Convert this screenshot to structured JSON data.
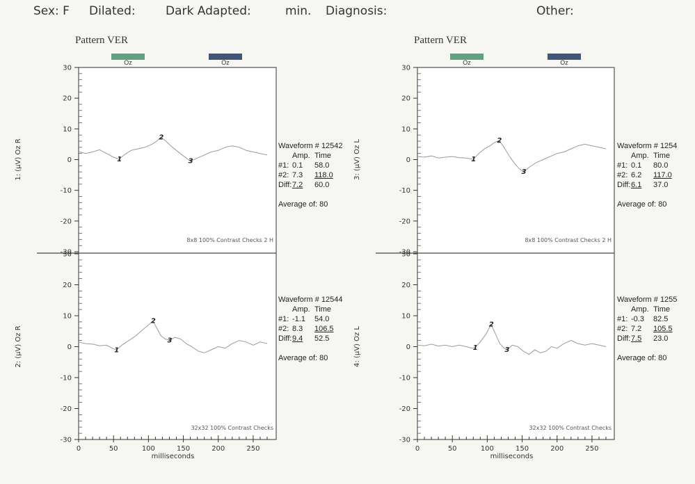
{
  "header": {
    "sex": "Sex: F",
    "dilated": "Dilated:",
    "dark_adapted": "Dark Adapted:",
    "min": "min.",
    "diagnosis": "Diagnosis:",
    "other": "Other:"
  },
  "panels": [
    {
      "title": "Pattern VER",
      "legend": [
        {
          "label": "Oz",
          "color": "#5fa37e"
        },
        {
          "label": "Oz",
          "color": "#3f5679"
        }
      ],
      "xlabel": "milliseconds",
      "traces": [
        {
          "channel": "1:  (μV)  Oz R",
          "caption": "8x8  100% Contrast  Checks 2 H",
          "info": {
            "waveform": "Waveform # 12542",
            "amp_header": "Amp.",
            "time_header": "Time",
            "rows": [
              {
                "label": "#1:",
                "amp": "0.1",
                "time": "58.0"
              },
              {
                "label": "#2:",
                "amp": "7.3",
                "time": "118.0"
              },
              {
                "label": "Diff:",
                "amp": "7.2",
                "time": "60.0"
              }
            ],
            "average": "Average of:  80"
          },
          "markers": [
            {
              "label": "1",
              "x": 58,
              "y": 0.1
            },
            {
              "label": "2",
              "x": 118,
              "y": 7.3
            },
            {
              "label": "3",
              "x": 160,
              "y": -0.5
            }
          ],
          "points": [
            [
              0,
              2.6
            ],
            [
              10,
              2.0
            ],
            [
              20,
              2.5
            ],
            [
              30,
              3.2
            ],
            [
              40,
              2.0
            ],
            [
              50,
              0.8
            ],
            [
              58,
              0.1
            ],
            [
              65,
              1.5
            ],
            [
              75,
              3.0
            ],
            [
              85,
              3.5
            ],
            [
              95,
              4.0
            ],
            [
              105,
              5.0
            ],
            [
              112,
              6.0
            ],
            [
              118,
              7.3
            ],
            [
              125,
              6.0
            ],
            [
              132,
              4.5
            ],
            [
              140,
              3.0
            ],
            [
              150,
              1.2
            ],
            [
              160,
              -0.5
            ],
            [
              170,
              0.5
            ],
            [
              180,
              1.5
            ],
            [
              190,
              2.5
            ],
            [
              200,
              3.0
            ],
            [
              210,
              4.0
            ],
            [
              220,
              4.5
            ],
            [
              230,
              4.0
            ],
            [
              240,
              3.0
            ],
            [
              250,
              2.5
            ],
            [
              260,
              2.0
            ],
            [
              270,
              1.5
            ]
          ]
        },
        {
          "channel": "2:  (μV)  Oz R",
          "caption": "32x32  100% Contrast  Checks",
          "info": {
            "waveform": "Waveform # 12544",
            "amp_header": "Amp.",
            "time_header": "Time",
            "rows": [
              {
                "label": "#1:",
                "amp": "-1.1",
                "time": "54.0"
              },
              {
                "label": "#2:",
                "amp": "8.3",
                "time": "106.5"
              },
              {
                "label": "Diff:",
                "amp": "9.4",
                "time": "52.5"
              }
            ],
            "average": "Average of:  80"
          },
          "markers": [
            {
              "label": "1",
              "x": 54,
              "y": -1.1
            },
            {
              "label": "2",
              "x": 106.5,
              "y": 8.3
            },
            {
              "label": "3",
              "x": 130,
              "y": 2.0
            }
          ],
          "points": [
            [
              0,
              1.5
            ],
            [
              10,
              1.0
            ],
            [
              20,
              0.8
            ],
            [
              30,
              0.3
            ],
            [
              40,
              0.5
            ],
            [
              48,
              -0.5
            ],
            [
              54,
              -1.1
            ],
            [
              62,
              0.5
            ],
            [
              72,
              2.0
            ],
            [
              82,
              3.5
            ],
            [
              92,
              5.5
            ],
            [
              100,
              7.0
            ],
            [
              106.5,
              8.3
            ],
            [
              112,
              6.0
            ],
            [
              118,
              3.5
            ],
            [
              124,
              2.5
            ],
            [
              130,
              2.0
            ],
            [
              138,
              3.0
            ],
            [
              146,
              2.5
            ],
            [
              154,
              1.0
            ],
            [
              162,
              0.0
            ],
            [
              172,
              -1.5
            ],
            [
              180,
              -2.0
            ],
            [
              190,
              -1.0
            ],
            [
              200,
              0.0
            ],
            [
              210,
              -0.5
            ],
            [
              220,
              1.0
            ],
            [
              230,
              2.0
            ],
            [
              240,
              1.5
            ],
            [
              250,
              0.5
            ],
            [
              260,
              1.5
            ],
            [
              270,
              1.0
            ]
          ]
        }
      ]
    },
    {
      "title": "Pattern VER",
      "legend": [
        {
          "label": "Oz",
          "color": "#5fa37e"
        },
        {
          "label": "Oz",
          "color": "#3f5679"
        }
      ],
      "xlabel": "milliseconds",
      "traces": [
        {
          "channel": "3:  (μV)  Oz L",
          "caption": "8x8  100% Contrast  Checks 2 H",
          "info": {
            "waveform": "Waveform # 1254",
            "amp_header": "Amp.",
            "time_header": "Time",
            "rows": [
              {
                "label": "#1:",
                "amp": "0.1",
                "time": "80.0"
              },
              {
                "label": "#2:",
                "amp": "6.2",
                "time": "117.0"
              },
              {
                "label": "Diff:",
                "amp": "6.1",
                "time": "37.0"
              }
            ],
            "average": "Average of:  80"
          },
          "markers": [
            {
              "label": "1",
              "x": 80,
              "y": 0.1
            },
            {
              "label": "2",
              "x": 117,
              "y": 6.2
            },
            {
              "label": "3",
              "x": 152,
              "y": -4.0
            }
          ],
          "points": [
            [
              0,
              1.0
            ],
            [
              10,
              0.8
            ],
            [
              20,
              1.2
            ],
            [
              30,
              0.5
            ],
            [
              40,
              0.8
            ],
            [
              50,
              1.0
            ],
            [
              60,
              0.6
            ],
            [
              70,
              0.5
            ],
            [
              80,
              0.1
            ],
            [
              88,
              2.0
            ],
            [
              96,
              3.5
            ],
            [
              104,
              4.5
            ],
            [
              110,
              5.5
            ],
            [
              117,
              6.2
            ],
            [
              124,
              4.0
            ],
            [
              132,
              1.0
            ],
            [
              140,
              -1.5
            ],
            [
              146,
              -3.0
            ],
            [
              152,
              -4.0
            ],
            [
              160,
              -2.5
            ],
            [
              170,
              -1.0
            ],
            [
              180,
              0.0
            ],
            [
              190,
              1.0
            ],
            [
              200,
              2.0
            ],
            [
              210,
              2.5
            ],
            [
              220,
              3.5
            ],
            [
              230,
              4.5
            ],
            [
              240,
              5.0
            ],
            [
              250,
              4.5
            ],
            [
              260,
              4.0
            ],
            [
              270,
              3.5
            ]
          ]
        },
        {
          "channel": "4:  (μV)  Oz L",
          "caption": "32x32  100% Contrast  Checks",
          "info": {
            "waveform": "Waveform # 1255",
            "amp_header": "Amp.",
            "time_header": "Time",
            "rows": [
              {
                "label": "#1:",
                "amp": "-0.3",
                "time": "82.5"
              },
              {
                "label": "#2:",
                "amp": "7.2",
                "time": "105.5"
              },
              {
                "label": "Diff:",
                "amp": "7.5",
                "time": "23.0"
              }
            ],
            "average": "Average of:  80"
          },
          "markers": [
            {
              "label": "1",
              "x": 82.5,
              "y": -0.3
            },
            {
              "label": "2",
              "x": 105.5,
              "y": 7.2
            },
            {
              "label": "3",
              "x": 128,
              "y": -1.0
            }
          ],
          "points": [
            [
              0,
              0.5
            ],
            [
              10,
              0.3
            ],
            [
              20,
              0.8
            ],
            [
              30,
              0.2
            ],
            [
              40,
              0.5
            ],
            [
              50,
              0.0
            ],
            [
              60,
              0.5
            ],
            [
              70,
              0.0
            ],
            [
              78,
              -0.5
            ],
            [
              82.5,
              -0.3
            ],
            [
              90,
              1.5
            ],
            [
              98,
              4.0
            ],
            [
              105.5,
              7.2
            ],
            [
              112,
              4.0
            ],
            [
              118,
              1.0
            ],
            [
              124,
              -0.5
            ],
            [
              128,
              -1.0
            ],
            [
              136,
              0.5
            ],
            [
              144,
              0.0
            ],
            [
              152,
              -1.5
            ],
            [
              160,
              -2.5
            ],
            [
              168,
              -1.0
            ],
            [
              176,
              -2.0
            ],
            [
              184,
              -1.5
            ],
            [
              192,
              0.0
            ],
            [
              200,
              -0.5
            ],
            [
              210,
              1.0
            ],
            [
              220,
              2.0
            ],
            [
              230,
              1.0
            ],
            [
              240,
              0.5
            ],
            [
              250,
              1.0
            ],
            [
              260,
              0.5
            ],
            [
              270,
              0.0
            ]
          ]
        }
      ]
    }
  ],
  "chart_data": [
    {
      "type": "line",
      "title": "Pattern VER",
      "xlabel": "milliseconds",
      "ylabel": "(μV) Oz R",
      "xlim": [
        0,
        270
      ],
      "ylim": [
        -30,
        30
      ],
      "xticks": [
        0,
        50,
        100,
        150,
        200,
        250
      ],
      "yticks": [
        30,
        20,
        10,
        0,
        -10,
        -20,
        -30
      ]
    },
    {
      "type": "line",
      "title": "Pattern VER",
      "xlabel": "milliseconds",
      "ylabel": "(μV) Oz L",
      "xlim": [
        0,
        270
      ],
      "ylim": [
        -30,
        30
      ],
      "xticks": [
        0,
        50,
        100,
        150,
        200,
        250
      ],
      "yticks": [
        30,
        20,
        10,
        0,
        -10,
        -20,
        -30
      ]
    }
  ]
}
